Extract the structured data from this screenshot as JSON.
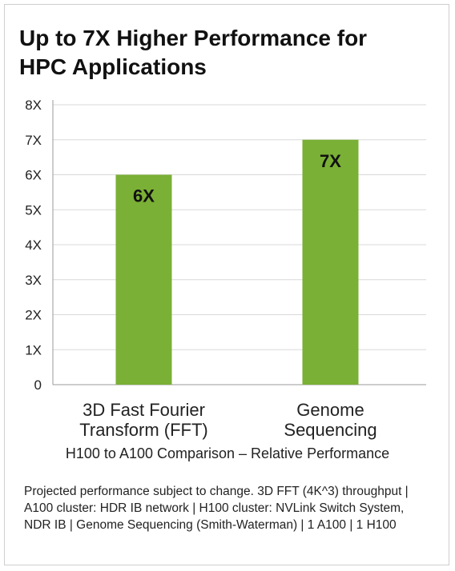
{
  "chart_data": {
    "type": "bar",
    "title_line1": "Up to 7X Higher Performance for",
    "title_line2": "HPC Applications",
    "categories": [
      {
        "line1": "3D Fast Fourier",
        "line2": "Transform (FFT)"
      },
      {
        "line1": "Genome",
        "line2": "Sequencing"
      }
    ],
    "values": [
      6,
      7
    ],
    "data_labels": [
      "6X",
      "7X"
    ],
    "y_ticks": [
      "0",
      "1X",
      "2X",
      "3X",
      "4X",
      "5X",
      "6X",
      "7X",
      "8X"
    ],
    "ylim": [
      0,
      8
    ],
    "xlabel": "H100 to A100 Comparison – Relative Performance",
    "grid": true,
    "bar_color": "#7ab035",
    "footnote": "Projected performance subject to change. 3D FFT (4K^3) throughput  |  A100 cluster: HDR IB network  |  H100 cluster: NVLink Switch System, NDR IB  |  Genome Sequencing (Smith-Waterman) | 1 A100  |  1 H100"
  }
}
